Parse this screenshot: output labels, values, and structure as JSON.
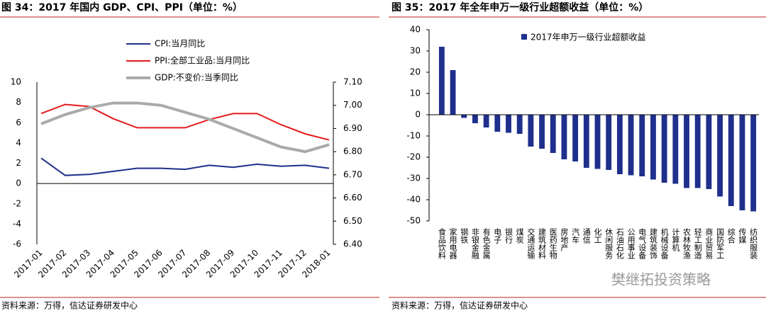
{
  "chart_data": [
    {
      "type": "line",
      "title": "图 34：2017 年国内 GDP、CPI、PPI（单位：%）",
      "source": "资料来源：万得，信达证券研发中心",
      "categories": [
        "2017-01",
        "2017-02",
        "2017-03",
        "2017-04",
        "2017-05",
        "2017-06",
        "2017-07",
        "2017-08",
        "2017-09",
        "2017-10",
        "2017-11",
        "2017-12",
        "2018-01"
      ],
      "series": [
        {
          "name": "CPI:当月同比",
          "color": "#1f2f8c",
          "values": [
            2.5,
            0.8,
            0.9,
            1.2,
            1.5,
            1.5,
            1.4,
            1.8,
            1.6,
            1.9,
            1.7,
            1.8,
            1.5
          ]
        },
        {
          "name": "PPI:全部工业品:当月同比",
          "color": "#e31a1c",
          "values": [
            6.9,
            7.8,
            7.6,
            6.4,
            5.5,
            5.5,
            5.5,
            6.3,
            6.9,
            6.9,
            5.8,
            4.9,
            4.3
          ]
        },
        {
          "name": "GDP:不变价:当季同比",
          "color": "#aaaaaa",
          "axis": "y2",
          "values": [
            6.92,
            6.96,
            6.99,
            7.01,
            7.01,
            7.0,
            6.97,
            6.94,
            6.9,
            6.86,
            6.82,
            6.8,
            6.83
          ]
        }
      ],
      "ylim": [
        -6,
        10
      ],
      "yticks": [
        -6,
        -4,
        -2,
        0,
        2,
        4,
        6,
        8,
        10
      ],
      "y2lim": [
        6.4,
        7.1
      ],
      "y2ticks": [
        {
          "value": 6.4,
          "label": "6.40"
        },
        {
          "value": 6.5,
          "label": "6.50"
        },
        {
          "value": 6.6,
          "label": "6.60"
        },
        {
          "value": 6.7,
          "label": "6.70"
        },
        {
          "value": 6.8,
          "label": "6.80"
        },
        {
          "value": 6.9,
          "label": "6.90"
        },
        {
          "value": 7.0,
          "label": "7.00"
        },
        {
          "value": 7.1,
          "label": "7.10"
        }
      ]
    },
    {
      "type": "bar",
      "title": "图 35：2017 年全年申万一级行业超额收益（单位：%）",
      "source": "资料来源：万得，信达证券研发中心",
      "annotation": "樊继拓投资策略",
      "categories": [
        "食品饮料",
        "家用电器",
        "钢铁",
        "非银金融",
        "有色金属",
        "电子",
        "银行",
        "煤炭",
        "交通运输",
        "建筑材料",
        "医药生物",
        "房地产",
        "汽车",
        "通信",
        "化工",
        "休闲服务",
        "石油石化",
        "公用事业",
        "电气设备",
        "建筑装饰",
        "机械设备",
        "计算机",
        "农林牧渔",
        "轻工制造",
        "商业贸易",
        "国防军工",
        "综合",
        "传媒",
        "纺织服装"
      ],
      "series": [
        {
          "name": "2017年申万一级行业超额收益",
          "color": "#1f2f8c",
          "values": [
            32,
            21,
            -1.5,
            -4,
            -6,
            -8,
            -8.5,
            -9,
            -15,
            -16,
            -18,
            -21,
            -22,
            -25,
            -25.5,
            -26,
            -28,
            -28.5,
            -29,
            -30.5,
            -32,
            -32.5,
            -34.5,
            -34.5,
            -35,
            -38.5,
            -43,
            -45,
            -45.5
          ]
        }
      ],
      "ylim": [
        -50,
        40
      ],
      "yticks": [
        -50,
        -40,
        -30,
        -20,
        -10,
        0,
        10,
        20,
        30,
        40
      ]
    }
  ]
}
